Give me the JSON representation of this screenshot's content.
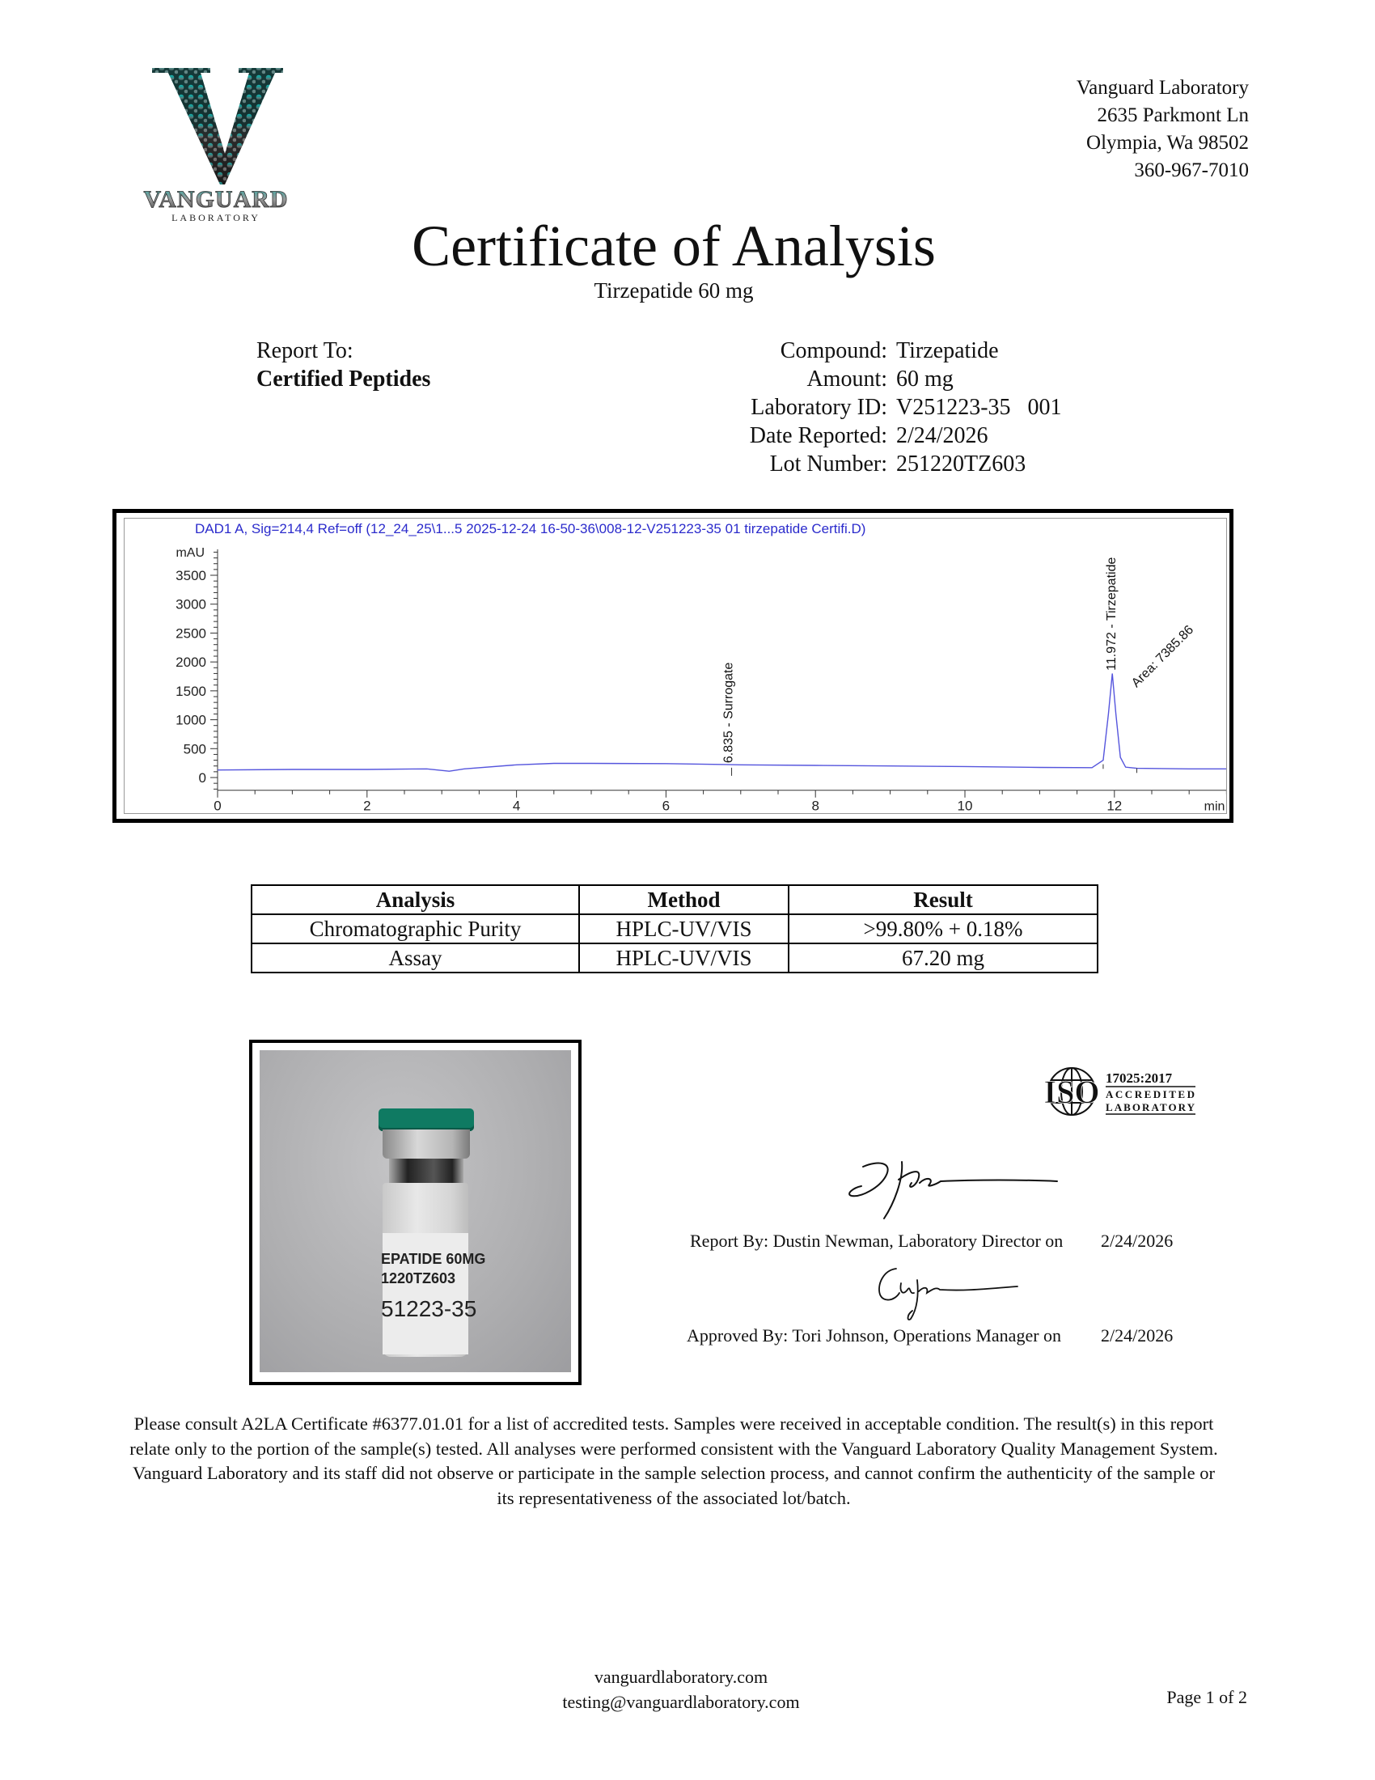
{
  "logo": {
    "name": "VANGUARD",
    "sub": "LABORATORY"
  },
  "address": {
    "lines": [
      "Vanguard Laboratory",
      "2635 Parkmont Ln",
      "Olympia, Wa 98502",
      "360-967-7010"
    ]
  },
  "title": "Certificate of Analysis",
  "subtitle": "Tirzepatide 60 mg",
  "report_to": {
    "label": "Report To:",
    "client": "Certified Peptides"
  },
  "meta": [
    {
      "label": "Compound:",
      "value": "Tirzepatide"
    },
    {
      "label": "Amount:",
      "value": "60 mg"
    },
    {
      "label": "Laboratory ID:",
      "value": "V251223-35   001"
    },
    {
      "label": "Date Reported:",
      "value": "2/24/2026"
    },
    {
      "label": "Lot Number:",
      "value": "251220TZ603"
    }
  ],
  "chart_data": {
    "type": "line",
    "title": "DAD1 A, Sig=214,4 Ref=off (12_24_25\\1...5 2025-12-24 16-50-36\\008-12-V251223-35 01 tirzepatide Certifi.D)",
    "ylabel": "mAU",
    "xlabel": "min",
    "xlim": [
      0,
      13.5
    ],
    "ylim": [
      -220,
      3950
    ],
    "x_ticks": [
      0,
      2,
      4,
      6,
      8,
      10,
      12
    ],
    "y_ticks": [
      0,
      500,
      1000,
      1500,
      2000,
      2500,
      3000,
      3500
    ],
    "colors": {
      "trace": "#5555dd",
      "title": "#2b2bcc"
    },
    "series": [
      {
        "x": [
          0,
          1,
          2,
          2.8,
          3.1,
          3.3,
          4,
          4.5,
          5,
          6,
          6.8,
          7,
          8,
          9,
          10,
          11,
          11.7,
          11.85,
          11.92,
          11.972,
          12.02,
          12.08,
          12.15,
          12.3,
          13,
          13.5
        ],
        "y": [
          130,
          140,
          140,
          150,
          110,
          150,
          220,
          245,
          245,
          240,
          225,
          220,
          210,
          200,
          190,
          175,
          170,
          300,
          1100,
          1800,
          1100,
          350,
          180,
          160,
          150,
          150
        ]
      }
    ],
    "peaks": [
      {
        "rt": 6.835,
        "label": "6.835 -  Surrogate"
      },
      {
        "rt": 11.972,
        "label": "11.972 -  Tirzepatide",
        "area": "Area: 7385.86"
      }
    ]
  },
  "results_table": {
    "headers": [
      "Analysis",
      "Method",
      "Result"
    ],
    "rows": [
      [
        "Chromatographic Purity",
        "HPLC-UV/VIS",
        ">99.80% + 0.18%"
      ],
      [
        "Assay",
        "HPLC-UV/VIS",
        "67.20 mg"
      ]
    ]
  },
  "vial_label": {
    "line1": "EPATIDE 60MG",
    "line2": "1220TZ603",
    "line3": "51223-35"
  },
  "iso": {
    "mark": "ISO",
    "standard": "17025:2017",
    "line2": "ACCREDITED",
    "line3": "LABORATORY"
  },
  "signoff": {
    "report_by": "Report By: Dustin Newman, Laboratory Director on",
    "report_date": "2/24/2026",
    "approved_by": "Approved By: Tori Johnson, Operations Manager on",
    "approved_date": "2/24/2026"
  },
  "disclaimer": "Please consult A2LA Certificate #6377.01.01 for a list of accredited tests. Samples were received in acceptable condition. The result(s) in this report relate only to the portion of the sample(s) tested. All analyses were performed consistent with the Vanguard Laboratory Quality Management System. Vanguard Laboratory and its staff did not observe or participate in the sample selection process, and cannot confirm the authenticity of the sample or its representativeness of the associated lot/batch.",
  "footer": {
    "website": "vanguardlaboratory.com",
    "email": "testing@vanguardlaboratory.com",
    "page": "Page 1 of 2"
  }
}
